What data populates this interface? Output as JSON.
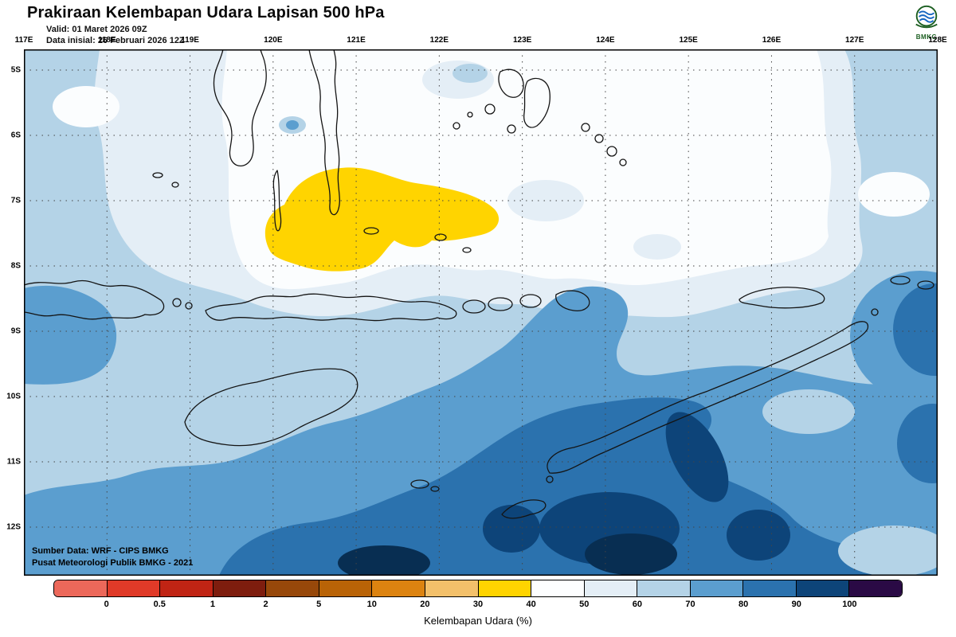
{
  "header": {
    "title": "Prakiraan Kelembapan Udara Lapisan 500 hPa",
    "valid_label": "Valid:",
    "valid_value": "01 Maret 2026 09Z",
    "init_label": "Data inisial:",
    "init_value": "26 Februari 2026 12Z",
    "logo_text": "BMKG"
  },
  "map": {
    "lon_labels": [
      "117E",
      "118E",
      "119E",
      "120E",
      "121E",
      "122E",
      "123E",
      "124E",
      "125E",
      "126E",
      "127E",
      "128E"
    ],
    "lat_labels": [
      "5S",
      "6S",
      "7S",
      "8S",
      "9S",
      "10S",
      "11S",
      "12S"
    ],
    "source_line1": "Sumber Data: WRF - CIPS BMKG",
    "source_line2": "Pusat Meteorologi Publik BMKG - 2021"
  },
  "colorbar": {
    "caption": "Kelembapan Udara (%)",
    "tick_labels": [
      "0",
      "0.5",
      "1",
      "2",
      "5",
      "10",
      "20",
      "30",
      "40",
      "50",
      "60",
      "70",
      "80",
      "90",
      "100"
    ],
    "colors": [
      "#ec685a",
      "#e03a28",
      "#c02414",
      "#7e1d0e",
      "#97480a",
      "#b96306",
      "#dc8310",
      "#f3c06a",
      "#ffd400",
      "#fdfeff",
      "#e4eef6",
      "#b4d3e7",
      "#5b9ecf",
      "#2b72ae",
      "#0d4479",
      "#2a0a45"
    ]
  }
}
